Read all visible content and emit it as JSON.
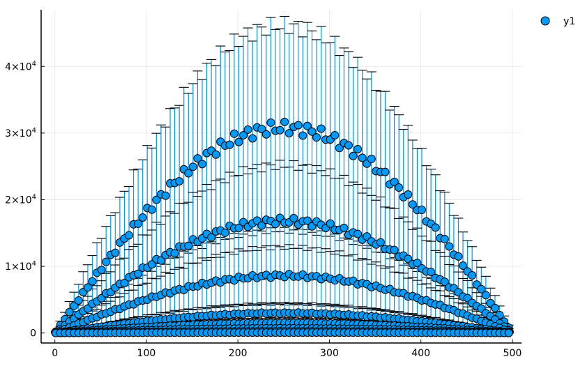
{
  "chart_data": {
    "type": "scatter",
    "title": "",
    "xlabel": "",
    "ylabel": "",
    "xlim": [
      -15,
      510
    ],
    "ylim": [
      -1500,
      48500
    ],
    "grid": true,
    "legend_position": "top-right",
    "x_ticks": [
      {
        "value": 0,
        "label": "0"
      },
      {
        "value": 100,
        "label": "100"
      },
      {
        "value": 200,
        "label": "200"
      },
      {
        "value": 300,
        "label": "300"
      },
      {
        "value": 400,
        "label": "400"
      },
      {
        "value": 500,
        "label": "500"
      }
    ],
    "y_ticks": [
      {
        "value": 0,
        "label": "0",
        "base": "0",
        "exp": ""
      },
      {
        "value": 10000,
        "label": "1×10⁴",
        "base": "1×10",
        "exp": "4"
      },
      {
        "value": 20000,
        "label": "2×10⁴",
        "base": "2×10",
        "exp": "4"
      },
      {
        "value": 30000,
        "label": "3×10⁴",
        "base": "3×10",
        "exp": "4"
      },
      {
        "value": 40000,
        "label": "4×10⁴",
        "base": "4×10",
        "exp": "4"
      }
    ],
    "series": [
      {
        "name": "y1",
        "color": "#009af9",
        "marker_edge": "#000000",
        "errorbar_color": "#009af9",
        "x_start": 1,
        "x_step": 5,
        "x_end": 496,
        "band_peaks": [
          30800,
          16800,
          8600,
          3000,
          1500,
          700,
          250,
          60
        ],
        "error_fraction": 0.5
      }
    ]
  },
  "legend": {
    "label": "y1"
  }
}
